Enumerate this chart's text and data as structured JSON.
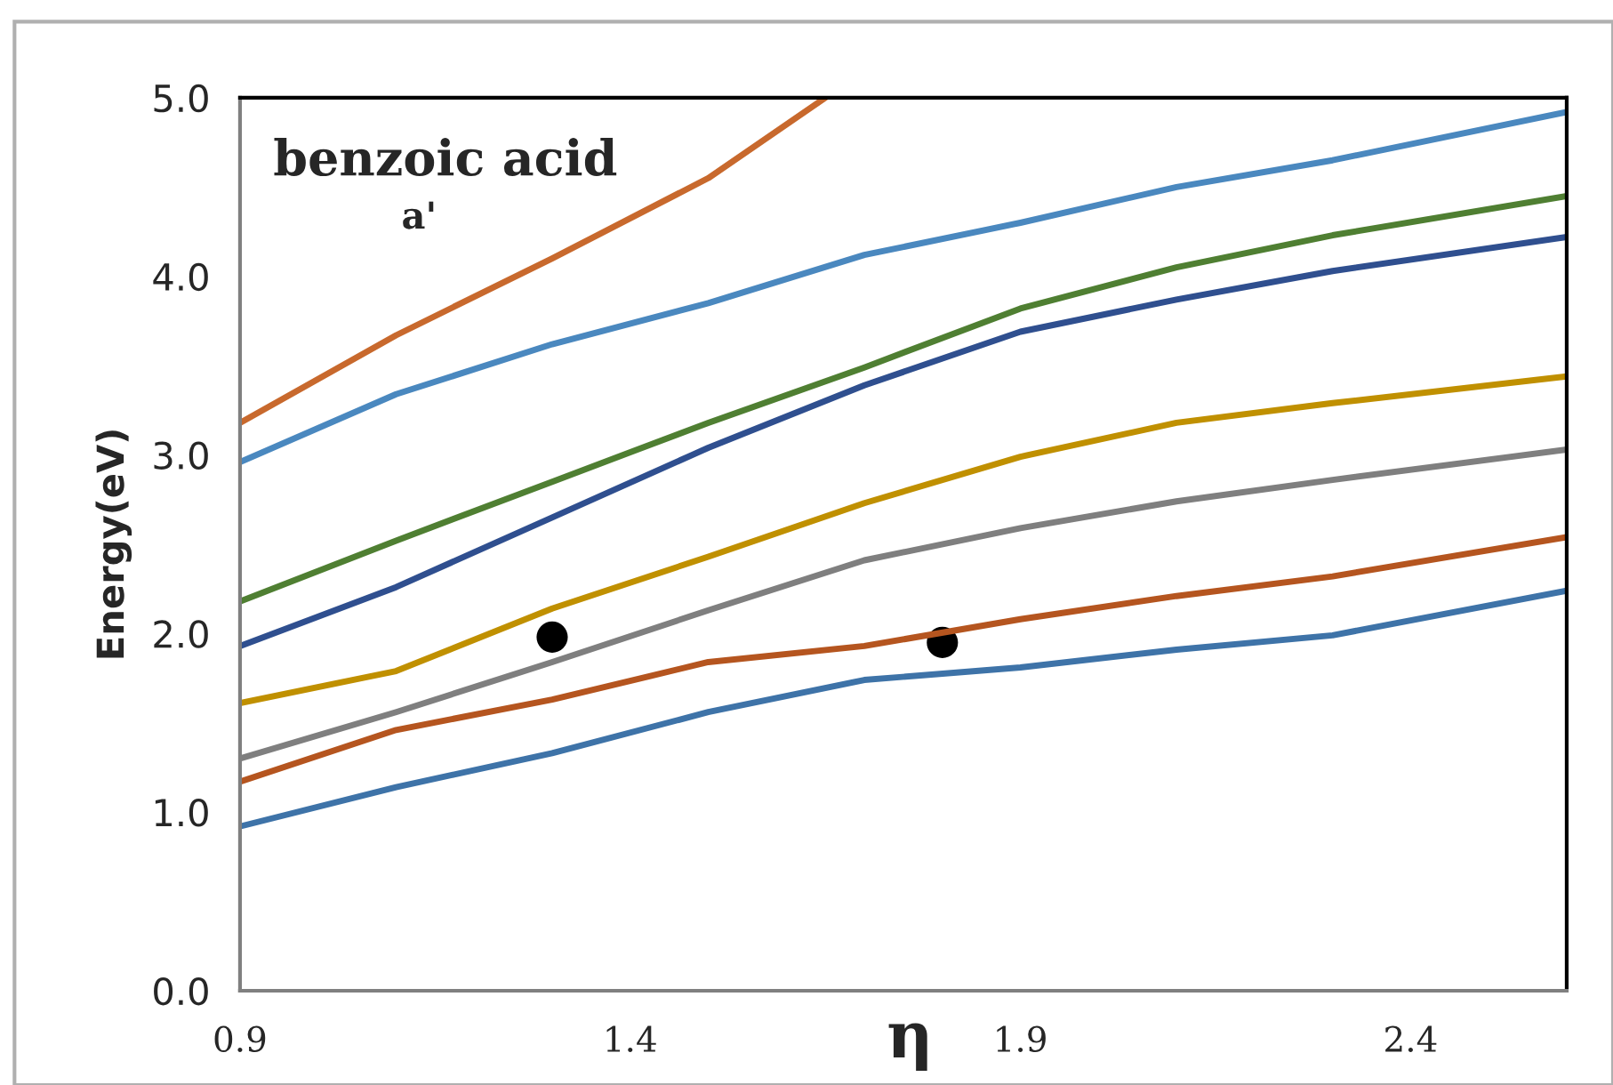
{
  "chart_data": {
    "type": "line",
    "xlabel": "η",
    "ylabel": "Energy(eV)",
    "annotations": [
      "benzoic acid",
      "a'"
    ],
    "xlim": [
      0.9,
      2.6
    ],
    "xticks": [
      0.9,
      1.4,
      1.9,
      2.4
    ],
    "ylim": [
      0,
      5
    ],
    "yticks": [
      {
        "value": 0,
        "label": "0.0"
      },
      {
        "value": 1,
        "label": "1.0"
      },
      {
        "value": 2,
        "label": "2.0"
      },
      {
        "value": 3,
        "label": "3.0"
      },
      {
        "value": 4,
        "label": "4.0"
      },
      {
        "value": 5,
        "label": "5.0"
      }
    ],
    "grid": false,
    "legend": false,
    "marker": "none",
    "line_style": "solid",
    "x": [
      0.9,
      1.1,
      1.3,
      1.5,
      1.7,
      1.9,
      2.1,
      2.3,
      2.6
    ],
    "series": [
      {
        "color": "#3e73a8",
        "values": [
          0.92,
          1.14,
          1.33,
          1.56,
          1.74,
          1.81,
          1.91,
          1.99,
          2.24
        ]
      },
      {
        "color": "#b5551f",
        "values": [
          1.17,
          1.46,
          1.63,
          1.84,
          1.93,
          2.08,
          2.21,
          2.32,
          2.54
        ]
      },
      {
        "color": "#7f7f7f",
        "values": [
          1.3,
          1.56,
          1.84,
          2.13,
          2.41,
          2.59,
          2.74,
          2.86,
          3.03
        ]
      },
      {
        "color": "#c09000",
        "values": [
          1.61,
          1.79,
          2.14,
          2.43,
          2.73,
          2.99,
          3.18,
          3.29,
          3.44
        ]
      },
      {
        "color": "#2f4f8f",
        "values": [
          1.93,
          2.26,
          2.65,
          3.04,
          3.39,
          3.69,
          3.87,
          4.03,
          4.22
        ]
      },
      {
        "color": "#4f7f32",
        "values": [
          2.18,
          2.52,
          2.85,
          3.18,
          3.49,
          3.82,
          4.05,
          4.23,
          4.45
        ]
      },
      {
        "color": "#4a88bf",
        "values": [
          2.96,
          3.34,
          3.62,
          3.85,
          4.12,
          4.3,
          4.5,
          4.65,
          4.92
        ]
      },
      {
        "color": "#c8692d",
        "x": [
          0.9,
          1.1,
          1.3,
          1.5,
          1.65
        ],
        "values": [
          3.18,
          3.67,
          4.1,
          4.55,
          5.0
        ]
      },
      {
        "type": "scatter",
        "marker": "circle",
        "color": "#000000",
        "x": [
          1.3,
          1.8
        ],
        "values": [
          1.98,
          1.95
        ]
      }
    ]
  }
}
